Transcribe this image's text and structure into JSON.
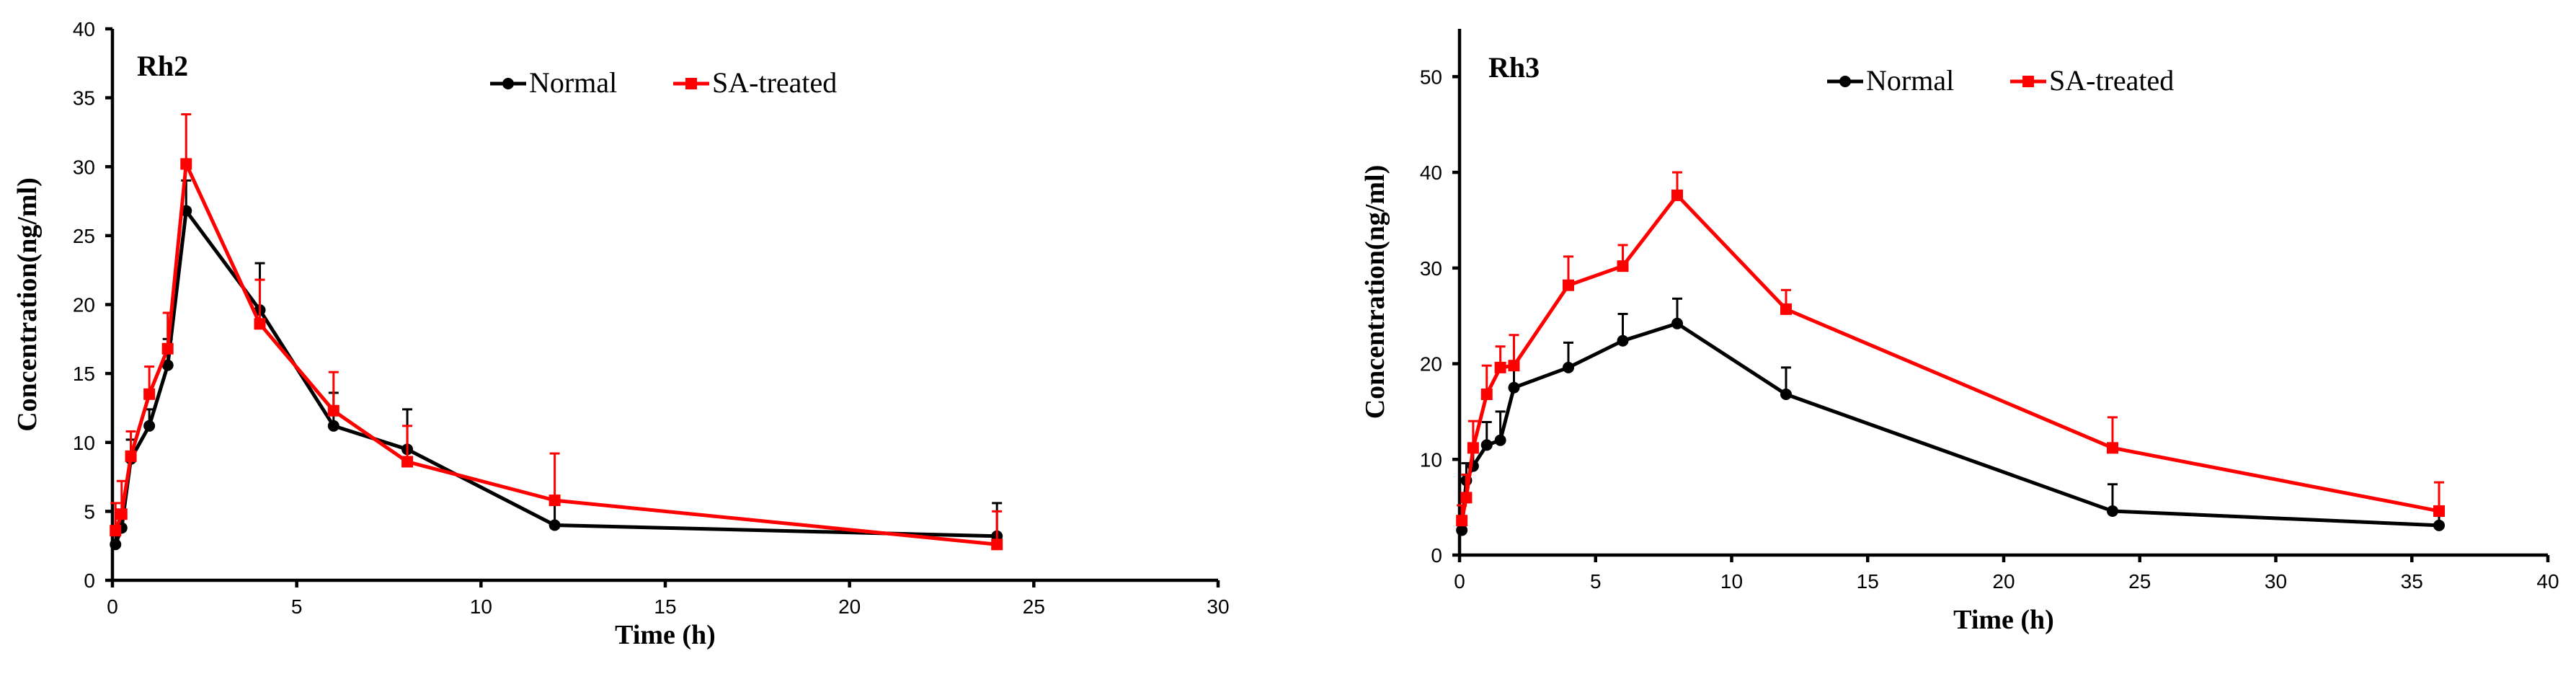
{
  "chart_data": [
    {
      "type": "line",
      "title": "Rh2",
      "xlabel": "Time (h)",
      "ylabel": "Concentration(ng/ml)",
      "xlim": [
        0,
        30
      ],
      "ylim": [
        0,
        40
      ],
      "xticks": [
        0,
        5,
        10,
        15,
        20,
        25,
        30
      ],
      "yticks": [
        0,
        5,
        10,
        15,
        20,
        25,
        30,
        35,
        40
      ],
      "legend_position": "top-center",
      "series": [
        {
          "name": "Normal",
          "color": "#000000",
          "marker": "circle",
          "x": [
            0.083,
            0.25,
            0.5,
            1,
            1.5,
            2,
            4,
            6,
            8,
            12,
            24
          ],
          "y": [
            2.6,
            3.8,
            8.8,
            11.2,
            15.6,
            26.8,
            19.6,
            11.2,
            9.5,
            4.0,
            3.2
          ],
          "error": [
            0.8,
            1.3,
            1.4,
            1.2,
            1.9,
            2.2,
            3.4,
            2.4,
            2.9,
            1.6,
            2.4
          ]
        },
        {
          "name": "SA-treated",
          "color": "#ff0000",
          "marker": "square",
          "x": [
            0.083,
            0.25,
            0.5,
            1,
            1.5,
            2,
            4,
            6,
            8,
            12,
            24
          ],
          "y": [
            3.6,
            4.8,
            9.0,
            13.5,
            16.8,
            30.2,
            18.6,
            12.3,
            8.6,
            5.8,
            2.6
          ],
          "error": [
            2.0,
            2.4,
            1.8,
            2.0,
            2.6,
            3.6,
            3.2,
            2.8,
            2.6,
            3.4,
            2.4
          ]
        }
      ]
    },
    {
      "type": "line",
      "title": "Rh3",
      "xlabel": "Time (h)",
      "ylabel": "Concentration(ng/ml)",
      "xlim": [
        0,
        40
      ],
      "ylim": [
        0,
        55
      ],
      "xticks": [
        0,
        5,
        10,
        15,
        20,
        25,
        30,
        35,
        40
      ],
      "yticks": [
        0,
        10,
        20,
        30,
        40,
        50
      ],
      "legend_position": "top-center",
      "series": [
        {
          "name": "Normal",
          "color": "#000000",
          "marker": "circle",
          "x": [
            0.083,
            0.25,
            0.5,
            1,
            1.5,
            2,
            4,
            6,
            8,
            12,
            24,
            36
          ],
          "y": [
            2.6,
            7.8,
            9.3,
            11.5,
            12.0,
            17.5,
            19.6,
            22.4,
            24.2,
            16.8,
            4.6,
            3.1
          ],
          "error": [
            1.0,
            1.8,
            2.0,
            2.4,
            3.0,
            2.6,
            2.6,
            2.8,
            2.6,
            2.8,
            2.8,
            1.0
          ]
        },
        {
          "name": "SA-treated",
          "color": "#ff0000",
          "marker": "square",
          "x": [
            0.083,
            0.25,
            0.5,
            1,
            1.5,
            2,
            4,
            6,
            8,
            12,
            24,
            36
          ],
          "y": [
            3.6,
            6.0,
            11.2,
            16.8,
            19.6,
            19.8,
            28.2,
            30.2,
            37.6,
            25.7,
            11.2,
            4.6
          ],
          "error": [
            1.6,
            2.4,
            2.8,
            3.0,
            2.2,
            3.2,
            3.0,
            2.2,
            2.4,
            2.0,
            3.2,
            3.0
          ]
        }
      ]
    }
  ]
}
